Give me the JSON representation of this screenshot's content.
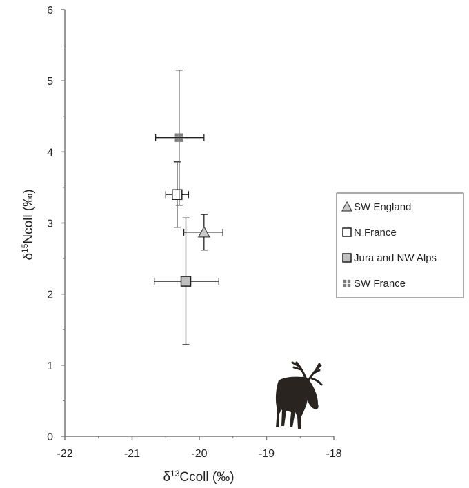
{
  "chart_data": {
    "type": "scatter",
    "title": "",
    "xlabel": {
      "prefix": "δ",
      "sup": "13",
      "main": "Ccoll (‰)"
    },
    "ylabel": {
      "prefix": "δ",
      "sup": "15",
      "main": "Ncoll (‰)"
    },
    "xlim": [
      -22,
      -18
    ],
    "ylim": [
      0,
      6
    ],
    "xticks": [
      -22,
      -21,
      -20,
      -19,
      -18
    ],
    "yticks": [
      0,
      1,
      2,
      3,
      4,
      5,
      6
    ],
    "grid": false,
    "legend_position": "right",
    "series": [
      {
        "name": "SW England",
        "marker": "triangle",
        "color": "#c8c8c8",
        "x": -19.93,
        "y": 2.87,
        "x_err": [
          0.3,
          0.28
        ],
        "y_err": [
          0.25,
          0.25
        ]
      },
      {
        "name": "N France",
        "marker": "square",
        "color": "#ffffff",
        "x": -20.33,
        "y": 3.4,
        "x_err": [
          0.17,
          0.17
        ],
        "y_err": [
          0.46,
          0.46
        ]
      },
      {
        "name": "Jura and NW Alps",
        "marker": "square",
        "color": "#c0c0c0",
        "x": -20.2,
        "y": 2.18,
        "x_err": [
          0.47,
          0.49
        ],
        "y_err": [
          0.89,
          0.89
        ]
      },
      {
        "name": "SW France",
        "marker": "checker-square",
        "color": "#7a7a7a",
        "x": -20.3,
        "y": 4.2,
        "x_err": [
          0.35,
          0.37
        ],
        "y_err": [
          0.95,
          0.95
        ]
      }
    ],
    "decoration": {
      "icon": "elk-silhouette-icon"
    }
  }
}
